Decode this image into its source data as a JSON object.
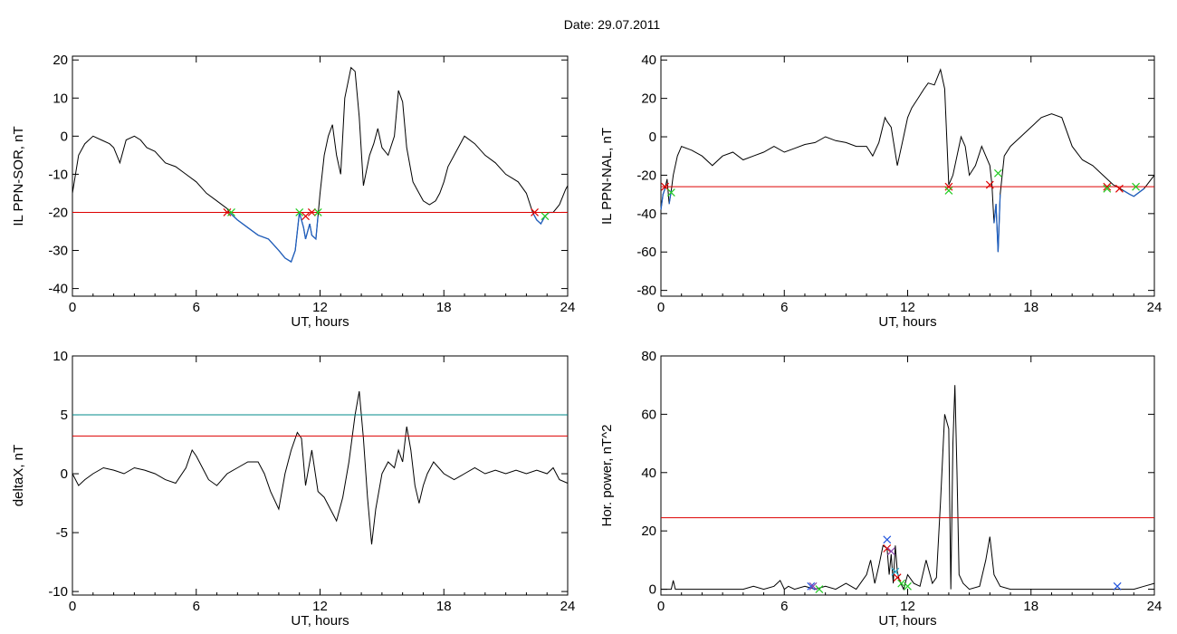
{
  "title": "Date:  29.07.2011",
  "colors": {
    "trace": "#000000",
    "below_threshold": "#1f5fbf",
    "threshold": "#dd0000",
    "upper_threshold": "#008b8b",
    "marker_red": "#dd0000",
    "marker_green": "#22cc22",
    "marker_blue": "#2255dd",
    "marker_cyan": "#22aacc",
    "marker_purple": "#8844aa"
  },
  "chart_data": [
    {
      "type": "line",
      "id": "sor",
      "ylabel": "IL PPN-SOR, nT",
      "xlabel": "UT, hours",
      "xlim": [
        0,
        24
      ],
      "ylim": [
        -42,
        21
      ],
      "xticks": [
        0,
        6,
        12,
        18,
        24
      ],
      "yticks": [
        -40,
        -30,
        -20,
        -10,
        0,
        10,
        20
      ],
      "thresholds": [
        {
          "value": -20,
          "color": "threshold"
        }
      ],
      "highlight_below": -20,
      "series": [
        {
          "x": [
            0,
            0.3,
            0.6,
            1.0,
            1.4,
            1.8,
            2.0,
            2.3,
            2.6,
            3.0,
            3.3,
            3.6,
            4.0,
            4.5,
            5.0,
            5.5,
            6.0,
            6.5,
            7.0,
            7.5,
            7.6,
            7.8,
            8.0,
            8.5,
            9.0,
            9.5,
            10.0,
            10.3,
            10.6,
            10.8,
            10.9,
            11.0,
            11.1,
            11.2,
            11.3,
            11.4,
            11.5,
            11.6,
            11.8,
            11.9,
            12.0,
            12.2,
            12.4,
            12.6,
            12.8,
            13.0,
            13.2,
            13.5,
            13.7,
            13.9,
            14.1,
            14.4,
            14.6,
            14.8,
            15.0,
            15.3,
            15.6,
            15.8,
            16.0,
            16.2,
            16.5,
            16.8,
            17.0,
            17.3,
            17.6,
            17.8,
            18.0,
            18.2,
            18.5,
            19.0,
            19.5,
            20.0,
            20.5,
            21.0,
            21.3,
            21.6,
            22.0,
            22.3,
            22.5,
            22.7,
            22.9,
            23.1,
            23.3,
            23.6,
            23.9,
            24.0
          ],
          "y": [
            -15,
            -5,
            -2,
            0,
            -1,
            -2,
            -3,
            -7,
            -1,
            0,
            -1,
            -3,
            -4,
            -7,
            -8,
            -10,
            -12,
            -15,
            -17,
            -19,
            -20,
            -21,
            -22,
            -24,
            -26,
            -27,
            -30,
            -32,
            -33,
            -30,
            -25,
            -20,
            -22,
            -24,
            -27,
            -25,
            -23,
            -26,
            -27,
            -21,
            -15,
            -5,
            0,
            3,
            -5,
            -10,
            10,
            18,
            17,
            5,
            -13,
            -5,
            -2,
            2,
            -3,
            -5,
            0,
            12,
            9,
            -3,
            -12,
            -15,
            -17,
            -18,
            -17,
            -15,
            -12,
            -8,
            -5,
            0,
            -2,
            -5,
            -7,
            -10,
            -11,
            -12,
            -15,
            -20,
            -22,
            -23,
            -21,
            -20,
            -20,
            -18,
            -14,
            -13
          ]
        }
      ],
      "markers": [
        {
          "x": 7.5,
          "y": -20,
          "color": "marker_red"
        },
        {
          "x": 7.7,
          "y": -20,
          "color": "marker_green"
        },
        {
          "x": 11.0,
          "y": -20,
          "color": "marker_green"
        },
        {
          "x": 11.3,
          "y": -21,
          "color": "marker_red"
        },
        {
          "x": 11.6,
          "y": -20,
          "color": "marker_red"
        },
        {
          "x": 11.9,
          "y": -20,
          "color": "marker_green"
        },
        {
          "x": 22.4,
          "y": -20,
          "color": "marker_red"
        },
        {
          "x": 22.9,
          "y": -21,
          "color": "marker_green"
        }
      ]
    },
    {
      "type": "line",
      "id": "nal",
      "ylabel": "IL PPN-NAL, nT",
      "xlabel": "UT, hours",
      "xlim": [
        0,
        24
      ],
      "ylim": [
        -83,
        42
      ],
      "xticks": [
        0,
        6,
        12,
        18,
        24
      ],
      "yticks": [
        -80,
        -60,
        -40,
        -20,
        0,
        20,
        40
      ],
      "thresholds": [
        {
          "value": -26,
          "color": "threshold"
        }
      ],
      "highlight_below": -26,
      "series": [
        {
          "x": [
            0,
            0.1,
            0.2,
            0.3,
            0.4,
            0.5,
            0.6,
            0.8,
            1.0,
            1.5,
            2.0,
            2.5,
            3.0,
            3.5,
            4.0,
            4.5,
            5.0,
            5.5,
            6.0,
            6.5,
            7.0,
            7.5,
            8.0,
            8.5,
            9.0,
            9.5,
            10.0,
            10.3,
            10.6,
            10.9,
            11.0,
            11.2,
            11.5,
            11.8,
            12.0,
            12.2,
            12.5,
            12.8,
            13.0,
            13.3,
            13.6,
            13.8,
            14.0,
            14.2,
            14.4,
            14.6,
            14.8,
            15.0,
            15.3,
            15.6,
            15.8,
            16.0,
            16.1,
            16.2,
            16.3,
            16.4,
            16.5,
            16.7,
            17.0,
            17.5,
            18.0,
            18.5,
            19.0,
            19.5,
            20.0,
            20.5,
            21.0,
            21.5,
            22.0,
            22.5,
            22.8,
            23.0,
            23.5,
            24.0
          ],
          "y": [
            -38,
            -30,
            -27,
            -22,
            -35,
            -28,
            -20,
            -10,
            -5,
            -7,
            -10,
            -15,
            -10,
            -8,
            -12,
            -10,
            -8,
            -5,
            -8,
            -6,
            -4,
            -3,
            0,
            -2,
            -3,
            -5,
            -5,
            -10,
            -3,
            10,
            8,
            5,
            -15,
            0,
            10,
            15,
            20,
            25,
            28,
            27,
            35,
            25,
            -25,
            -20,
            -10,
            0,
            -5,
            -20,
            -15,
            -5,
            -10,
            -15,
            -25,
            -45,
            -35,
            -60,
            -30,
            -10,
            -5,
            0,
            5,
            10,
            12,
            10,
            -5,
            -12,
            -15,
            -20,
            -25,
            -28,
            -30,
            -31,
            -27,
            -20
          ]
        }
      ],
      "markers": [
        {
          "x": 0.2,
          "y": -26,
          "color": "marker_red"
        },
        {
          "x": 0.5,
          "y": -29,
          "color": "marker_green"
        },
        {
          "x": 14.0,
          "y": -26,
          "color": "marker_red"
        },
        {
          "x": 14.0,
          "y": -28,
          "color": "marker_green"
        },
        {
          "x": 16.0,
          "y": -25,
          "color": "marker_red"
        },
        {
          "x": 16.4,
          "y": -19,
          "color": "marker_green"
        },
        {
          "x": 21.7,
          "y": -26,
          "color": "marker_red"
        },
        {
          "x": 21.7,
          "y": -27,
          "color": "marker_green"
        },
        {
          "x": 22.3,
          "y": -27,
          "color": "marker_red"
        },
        {
          "x": 23.1,
          "y": -26,
          "color": "marker_green"
        }
      ]
    },
    {
      "type": "line",
      "id": "deltax",
      "ylabel": "deltaX, nT",
      "xlabel": "UT, hours",
      "xlim": [
        0,
        24
      ],
      "ylim": [
        -10.3,
        10
      ],
      "xticks": [
        0,
        6,
        12,
        18,
        24
      ],
      "yticks": [
        -10,
        -5,
        0,
        5,
        10
      ],
      "thresholds": [
        {
          "value": 5,
          "color": "upper_threshold"
        },
        {
          "value": 3.2,
          "color": "threshold"
        }
      ],
      "series": [
        {
          "x": [
            0,
            0.3,
            0.6,
            1.0,
            1.5,
            2.0,
            2.5,
            3.0,
            3.5,
            4.0,
            4.5,
            5.0,
            5.5,
            5.8,
            6.0,
            6.3,
            6.6,
            7.0,
            7.5,
            8.0,
            8.5,
            9.0,
            9.3,
            9.6,
            10.0,
            10.3,
            10.6,
            10.9,
            11.1,
            11.3,
            11.6,
            11.9,
            12.2,
            12.5,
            12.8,
            13.1,
            13.4,
            13.7,
            13.9,
            14.1,
            14.3,
            14.5,
            14.7,
            15.0,
            15.3,
            15.6,
            15.8,
            16.0,
            16.2,
            16.4,
            16.6,
            16.8,
            17.0,
            17.2,
            17.5,
            18.0,
            18.5,
            19.0,
            19.5,
            20.0,
            20.5,
            21.0,
            21.5,
            22.0,
            22.5,
            23.0,
            23.3,
            23.6,
            24.0
          ],
          "y": [
            0,
            -1,
            -0.5,
            0,
            0.5,
            0.3,
            0,
            0.5,
            0.3,
            0,
            -0.5,
            -0.8,
            0.5,
            2,
            1.5,
            0.5,
            -0.5,
            -1,
            0,
            0.5,
            1,
            1,
            0,
            -1.5,
            -3,
            0,
            2,
            3.5,
            3,
            -1,
            2,
            -1.5,
            -2,
            -3,
            -4,
            -2,
            1,
            5,
            7,
            3,
            -2,
            -6,
            -3,
            0,
            1,
            0.5,
            2,
            1,
            4,
            2,
            -1,
            -2.5,
            -1,
            0,
            1,
            0,
            -0.5,
            0,
            0.5,
            0,
            0.3,
            0,
            0.3,
            0,
            0.3,
            0,
            0.5,
            -0.5,
            -0.8
          ]
        }
      ],
      "markers": []
    },
    {
      "type": "line",
      "id": "power",
      "ylabel": "Hor. power, nT^2",
      "xlabel": "UT, hours",
      "xlim": [
        0,
        24
      ],
      "ylim": [
        -2,
        80
      ],
      "xticks": [
        0,
        6,
        12,
        18,
        24
      ],
      "yticks": [
        0,
        20,
        40,
        60,
        80
      ],
      "thresholds": [
        {
          "value": 24.5,
          "color": "threshold"
        }
      ],
      "series": [
        {
          "x": [
            0,
            0.5,
            0.6,
            0.7,
            1.0,
            2.0,
            3.0,
            4.0,
            4.5,
            5.0,
            5.5,
            5.8,
            6.0,
            6.2,
            6.5,
            7.0,
            7.5,
            8.0,
            8.5,
            9.0,
            9.5,
            10.0,
            10.2,
            10.4,
            10.6,
            10.8,
            11.0,
            11.1,
            11.2,
            11.3,
            11.4,
            11.5,
            11.6,
            11.8,
            12.0,
            12.3,
            12.6,
            12.9,
            13.2,
            13.4,
            13.6,
            13.8,
            14.0,
            14.1,
            14.2,
            14.3,
            14.4,
            14.5,
            14.7,
            15.0,
            15.5,
            15.8,
            16.0,
            16.2,
            16.5,
            17.0,
            18.0,
            19.0,
            20.0,
            21.0,
            22.0,
            23.0,
            23.5,
            24.0
          ],
          "y": [
            0,
            0,
            3,
            0,
            0,
            0,
            0,
            0,
            1,
            0,
            1,
            3,
            0,
            1,
            0,
            1,
            0,
            1,
            0,
            2,
            0,
            5,
            10,
            2,
            8,
            15,
            14,
            5,
            12,
            2,
            15,
            6,
            3,
            0,
            5,
            2,
            1,
            10,
            2,
            4,
            30,
            60,
            55,
            0,
            50,
            70,
            40,
            5,
            2,
            0,
            1,
            10,
            18,
            5,
            1,
            0,
            0,
            0,
            0,
            0,
            0,
            0,
            1,
            2
          ]
        }
      ],
      "markers": [
        {
          "x": 7.3,
          "y": 1,
          "color": "marker_blue"
        },
        {
          "x": 7.4,
          "y": 1,
          "color": "marker_purple"
        },
        {
          "x": 7.7,
          "y": 0,
          "color": "marker_green"
        },
        {
          "x": 11.0,
          "y": 17,
          "color": "marker_blue"
        },
        {
          "x": 11.0,
          "y": 14,
          "color": "marker_red"
        },
        {
          "x": 11.2,
          "y": 13,
          "color": "marker_purple"
        },
        {
          "x": 11.4,
          "y": 6,
          "color": "marker_cyan"
        },
        {
          "x": 11.5,
          "y": 4,
          "color": "marker_red"
        },
        {
          "x": 11.7,
          "y": 2,
          "color": "marker_green"
        },
        {
          "x": 12.0,
          "y": 1,
          "color": "marker_green"
        },
        {
          "x": 22.2,
          "y": 1,
          "color": "marker_blue"
        }
      ]
    }
  ]
}
